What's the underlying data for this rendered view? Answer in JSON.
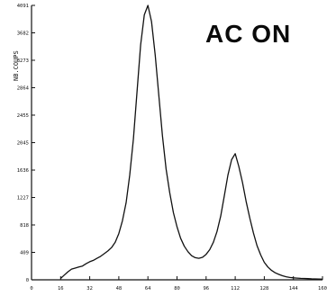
{
  "chart_data": {
    "type": "line",
    "title": "",
    "annotation": "AC ON",
    "xlabel": "",
    "ylabel": "NB.COUPS",
    "xlim": [
      0,
      160
    ],
    "ylim": [
      0,
      4091
    ],
    "x_ticks": [
      0,
      16,
      32,
      48,
      64,
      80,
      96,
      112,
      128,
      144,
      160
    ],
    "y_ticks": [
      0,
      409,
      818,
      1227,
      1636,
      2045,
      2455,
      2864,
      3273,
      3682,
      4091
    ],
    "grid": false,
    "colors": {
      "line": "#111111",
      "axis": "#111111"
    },
    "series": [
      {
        "x": [
          16,
          18,
          20,
          22,
          24,
          26,
          28,
          30,
          32,
          34,
          36,
          38,
          40,
          42,
          44,
          46,
          48,
          50,
          52,
          54,
          56,
          58,
          60,
          62,
          64,
          66,
          68,
          70,
          72,
          74,
          76,
          78,
          80,
          82,
          84,
          86,
          88,
          90,
          92,
          94,
          96,
          98,
          100,
          102,
          104,
          106,
          108,
          110,
          112,
          114,
          116,
          118,
          120,
          122,
          124,
          126,
          128,
          130,
          132,
          134,
          136,
          138,
          140,
          142,
          144,
          146,
          148,
          150,
          152,
          154,
          156,
          158,
          160
        ],
        "y": [
          20,
          70,
          120,
          160,
          175,
          190,
          205,
          240,
          270,
          290,
          320,
          350,
          390,
          430,
          480,
          560,
          690,
          880,
          1150,
          1560,
          2100,
          2800,
          3500,
          3950,
          4091,
          3850,
          3350,
          2750,
          2150,
          1650,
          1300,
          1000,
          790,
          620,
          500,
          420,
          360,
          330,
          320,
          335,
          380,
          450,
          560,
          720,
          950,
          1250,
          1560,
          1790,
          1880,
          1690,
          1450,
          1170,
          920,
          700,
          510,
          370,
          260,
          190,
          140,
          105,
          80,
          60,
          45,
          35,
          30,
          25,
          22,
          20,
          18,
          15,
          14,
          12,
          10
        ]
      }
    ]
  }
}
